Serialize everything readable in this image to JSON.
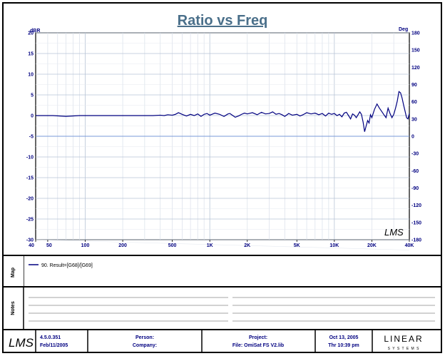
{
  "chart_data": {
    "type": "line",
    "title": "Ratio vs Freq",
    "left_unit": "dBR",
    "right_unit": "Deg",
    "x_scale": "log",
    "xlim": [
      40,
      40000
    ],
    "ylim": [
      -30,
      20
    ],
    "y2lim": [
      -180,
      180
    ],
    "grid": true,
    "x_tick_labels": [
      "40",
      "50",
      "100",
      "200",
      "500",
      "1K",
      "2K",
      "5K",
      "10K",
      "20K",
      "40K"
    ],
    "x_tick_values": [
      40,
      50,
      100,
      200,
      500,
      1000,
      2000,
      5000,
      10000,
      20000,
      40000
    ],
    "y_ticks": [
      20,
      15,
      10,
      5,
      0,
      -5,
      -10,
      -15,
      -20,
      -25,
      -30
    ],
    "y2_ticks": [
      180,
      150,
      120,
      90,
      60,
      30,
      0,
      -30,
      -60,
      -90,
      -120,
      -150,
      -180
    ],
    "series": [
      {
        "name": "90. Result=[G68]/[G69]",
        "color": "#000080",
        "x": [
          40,
          55,
          70,
          90,
          120,
          160,
          200,
          250,
          300,
          350,
          400,
          430,
          460,
          500,
          530,
          560,
          600,
          650,
          700,
          750,
          800,
          850,
          900,
          950,
          1000,
          1100,
          1200,
          1300,
          1400,
          1450,
          1500,
          1600,
          1700,
          1800,
          1900,
          2000,
          2200,
          2400,
          2600,
          2800,
          3000,
          3200,
          3400,
          3600,
          3800,
          4000,
          4300,
          4600,
          5000,
          5300,
          5600,
          6000,
          6500,
          7000,
          7500,
          8000,
          8500,
          9000,
          9500,
          10000,
          10500,
          11000,
          11500,
          12000,
          12500,
          13000,
          13500,
          14000,
          14500,
          15000,
          16000,
          16500,
          17000,
          17500,
          18000,
          18500,
          19000,
          19500,
          20000,
          21000,
          22000,
          23000,
          24000,
          25000,
          26000,
          27000,
          28000,
          29000,
          30000,
          31000,
          32000,
          33000,
          34000,
          35000,
          36000,
          37000,
          38000,
          39000,
          40000
        ],
        "values": [
          0,
          0,
          -0.2,
          0,
          0,
          0,
          0,
          0,
          0,
          0,
          0.1,
          0,
          0.2,
          0.1,
          0.3,
          0.7,
          0.3,
          -0.1,
          0.3,
          0,
          0.4,
          -0.2,
          0.3,
          0.5,
          0.1,
          0.6,
          0.3,
          -0.2,
          0.4,
          0.5,
          0.2,
          -0.4,
          -0.1,
          0.3,
          0.6,
          0.4,
          0.7,
          0.2,
          0.8,
          0.4,
          0.5,
          0.9,
          0.3,
          0.5,
          0.2,
          -0.2,
          0.5,
          0.1,
          0.3,
          -0.1,
          0.2,
          0.7,
          0.4,
          0.6,
          0.2,
          0.5,
          -0.1,
          0.6,
          0.3,
          0.5,
          0,
          0.3,
          -0.3,
          0.6,
          0.8,
          0,
          -0.8,
          0.4,
          0.1,
          -0.5,
          0.9,
          0.3,
          -1.5,
          -3.9,
          -2.5,
          -1.2,
          -1.8,
          0.2,
          -0.5,
          1.5,
          2.8,
          1.8,
          1.0,
          0.2,
          -0.5,
          1.8,
          0.5,
          -0.5,
          0.3,
          1.8,
          3.5,
          5.8,
          5.5,
          4.2,
          2.5,
          1.0,
          -0.5,
          -0.8,
          0.5
        ]
      }
    ]
  },
  "footer": {
    "map_tab": "Map",
    "notes_tab": "Notes",
    "legend_entry": "90. Result=[G68]/[G69]",
    "version": "4.5.0.351",
    "version_date": "Feb/11/2005",
    "person_label": "Person:",
    "company_label": "Company:",
    "project_label": "Project:",
    "file_label": "File: OmiSat FS V2.lib",
    "date": "Oct 13, 2005",
    "time": "Thr 10:39 pm",
    "lms_logo": "LMS",
    "brand_line1": "LINEAR",
    "brand_line2": "S Y S T E M S"
  }
}
